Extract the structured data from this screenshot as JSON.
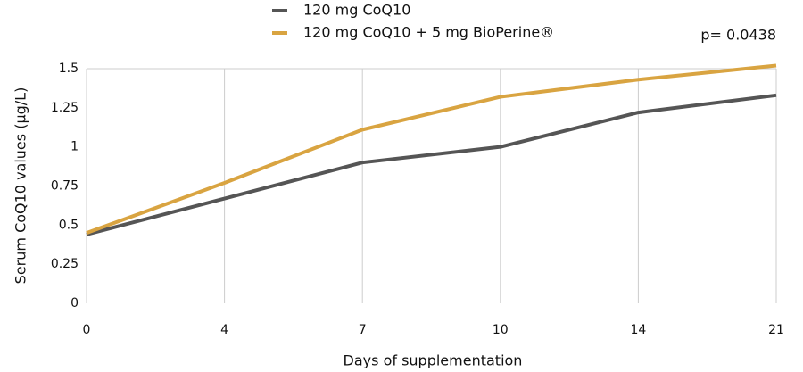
{
  "chart_data": {
    "type": "line",
    "y_label": "Serum CoQ10 values (µg/L)",
    "x_label": "Days of supplementation",
    "annotation": "p= 0.0438",
    "categories": [
      "0",
      "4",
      "7",
      "10",
      "14",
      "21"
    ],
    "series": [
      {
        "name": "120 mg CoQ10",
        "color": "#555555",
        "values": [
          0.44,
          0.67,
          0.9,
          1.0,
          1.22,
          1.33
        ]
      },
      {
        "name": "120 mg CoQ10 + 5 mg BioPerine®",
        "color": "#d9a441",
        "values": [
          0.45,
          0.77,
          1.11,
          1.32,
          1.43,
          1.52
        ]
      }
    ],
    "ylim": [
      0,
      1.5
    ],
    "yticks": [
      0,
      0.25,
      0.5,
      0.75,
      1,
      1.25,
      1.5
    ],
    "grid": true
  }
}
